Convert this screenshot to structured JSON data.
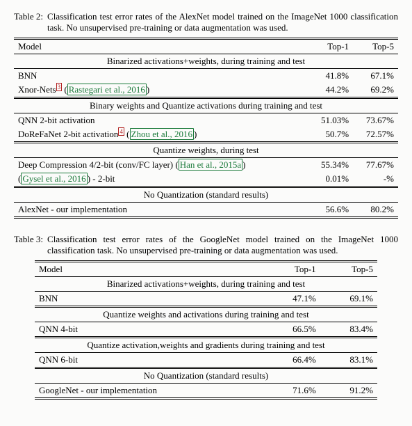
{
  "table2": {
    "caption_label": "Table 2:",
    "caption_text": "Classification test error rates of the AlexNet model trained on the ImageNet 1000 classification task. No unsupervised pre-training or data augmentation was used.",
    "header_model": "Model",
    "header_top1": "Top-1",
    "header_top5": "Top-5",
    "sec1": "Binarized activations+weights, during training and test",
    "r1_model": "BNN",
    "r1_t1": "41.8%",
    "r1_t5": "67.1%",
    "r2_model_a": "Xnor-Nets",
    "r2_fn": "3",
    "r2_cite": "Rastegari et al., 2016",
    "r2_t1": "44.2%",
    "r2_t5": "69.2%",
    "sec2": "Binary weights and Quantize activations during training and test",
    "r3_model": "QNN 2-bit activation",
    "r3_t1": "51.03%",
    "r3_t5": "73.67%",
    "r4_model_a": "DoReFaNet 2-bit activation",
    "r4_fn": "4",
    "r4_cite": "Zhou et al., 2016",
    "r4_t1": "50.7%",
    "r4_t5": "72.57%",
    "sec3": "Quantize weights, during test",
    "r5_model_a": "Deep Compression 4/2-bit (conv/FC layer) (",
    "r5_cite": "Han et al., 2015a",
    "r5_model_b": ")",
    "r5_t1": "55.34%",
    "r5_t5": "77.67%",
    "r6_cite": "Gysel et al., 2016",
    "r6_model_b": " - 2-bit",
    "r6_t1": "0.01%",
    "r6_t5": "-%",
    "sec4": "No Quantization (standard results)",
    "r7_model": "AlexNet - our implementation",
    "r7_t1": "56.6%",
    "r7_t5": "80.2%"
  },
  "table3": {
    "caption_label": "Table 3:",
    "caption_text": "Classification test error rates of the GoogleNet model trained on the ImageNet 1000 classification task. No unsupervised pre-training or data augmentation was used.",
    "header_model": "Model",
    "header_top1": "Top-1",
    "header_top5": "Top-5",
    "sec1": "Binarized activations+weights, during training and test",
    "r1_model": "BNN",
    "r1_t1": "47.1%",
    "r1_t5": "69.1%",
    "sec2": "Quantize weights and activations during training and test",
    "r2_model": "QNN 4-bit",
    "r2_t1": "66.5%",
    "r2_t5": "83.4%",
    "sec3": "Quantize activation,weights and gradients during training and test",
    "r3_model": "QNN 6-bit",
    "r3_t1": "66.4%",
    "r3_t5": "83.1%",
    "sec4": "No Quantization (standard results)",
    "r4_model": "GoogleNet - our implementation",
    "r4_t1": "71.6%",
    "r4_t5": "91.2%"
  }
}
